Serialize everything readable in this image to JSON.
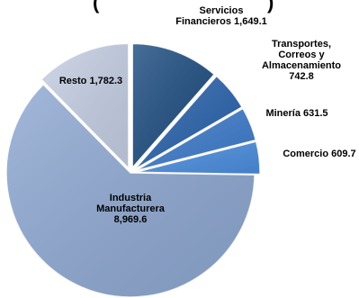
{
  "title_fragment": "(",
  "title_fragment_right": ")",
  "chart_data": {
    "type": "pie",
    "title": "",
    "slices": [
      {
        "name": "Servicios Financieros",
        "value": 1649.1,
        "label_lines": [
          "Servicios",
          "Financieros 1,649.1"
        ],
        "color": "#1f4e82",
        "exploded": true
      },
      {
        "name": "Transportes, Correos y Almacenamiento",
        "value": 742.8,
        "label_lines": [
          "Transportes,",
          "Correos y",
          "Almacenamiento",
          "742.8"
        ],
        "color": "#2a63ad",
        "exploded": true
      },
      {
        "name": "Minería",
        "value": 631.5,
        "label_lines": [
          "Minería  631.5"
        ],
        "color": "#3e7ccc",
        "exploded": true
      },
      {
        "name": "Comercio",
        "value": 609.7,
        "label_lines": [
          "Comercio 609.7"
        ],
        "color": "#4b8ee0",
        "exploded": true
      },
      {
        "name": "Industria Manufacturera",
        "value": 8969.6,
        "label_lines": [
          "Industria",
          "Manufacturera",
          "8,969.6"
        ],
        "color": "#8fa9d3",
        "exploded": false
      },
      {
        "name": "Resto",
        "value": 1782.3,
        "label_lines": [
          "Resto 1,782.3"
        ],
        "color": "#c6d0e5",
        "exploded": true
      }
    ]
  }
}
